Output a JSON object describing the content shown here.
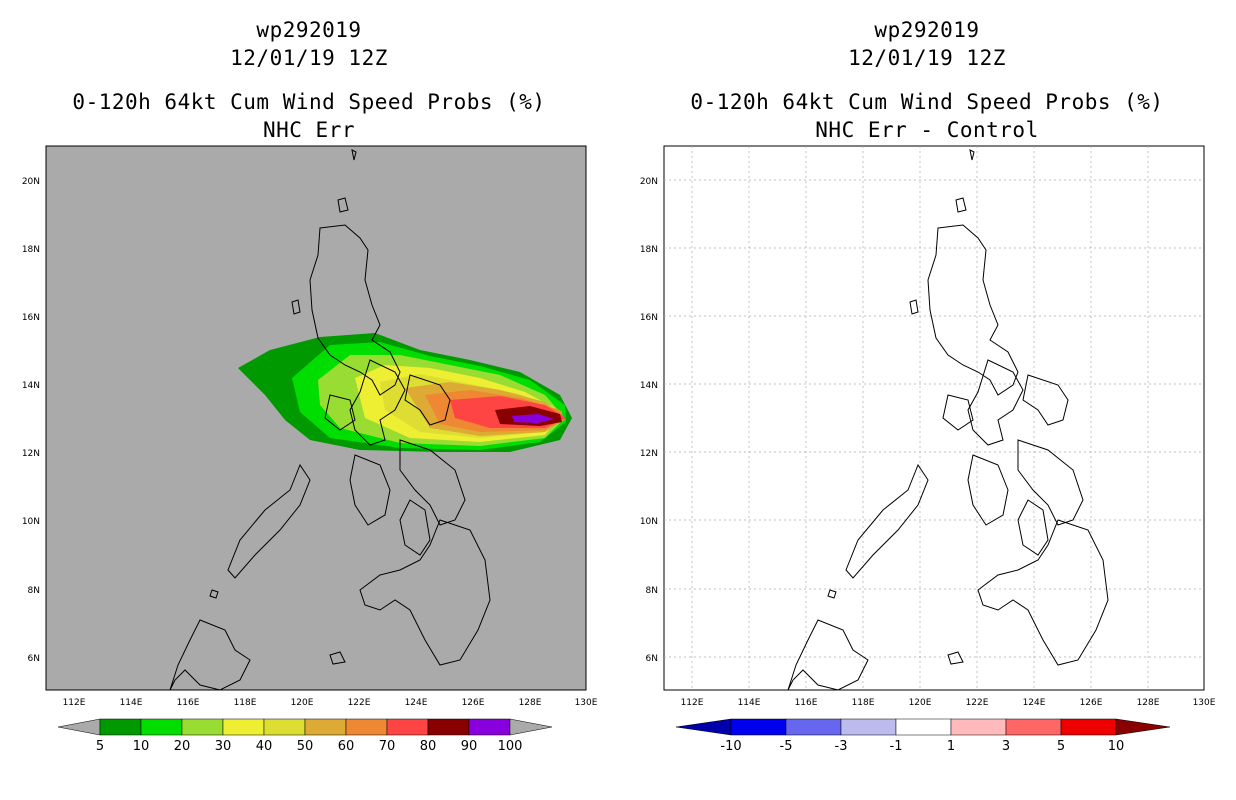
{
  "panels": [
    {
      "title_lines": [
        "wp292019",
        "12/01/19 12Z",
        "0-120h 64kt Cum Wind Speed Probs (%)",
        "NHC Err"
      ],
      "lat_labels": [
        "20N",
        "18N",
        "16N",
        "14N",
        "12N",
        "10N",
        "8N",
        "6N"
      ],
      "lon_labels": [
        "112E",
        "114E",
        "116E",
        "118E",
        "120E",
        "122E",
        "124E",
        "126E",
        "128E",
        "130E"
      ],
      "colorbar_labels": [
        "5",
        "10",
        "20",
        "30",
        "40",
        "50",
        "60",
        "70",
        "80",
        "90",
        "100"
      ],
      "colorbar_colors": [
        "#009900",
        "#00dd00",
        "#99dd33",
        "#eeee33",
        "#dddd33",
        "#ddaa33",
        "#ee8833",
        "#ff4444",
        "#880000",
        "#8800dd"
      ],
      "background_color": "#aaaaaa"
    },
    {
      "title_lines": [
        "wp292019",
        "12/01/19 12Z",
        "0-120h 64kt Cum Wind Speed Probs (%)",
        "NHC Err - Control"
      ],
      "lat_labels": [
        "20N",
        "18N",
        "16N",
        "14N",
        "12N",
        "10N",
        "8N",
        "6N"
      ],
      "lon_labels": [
        "112E",
        "114E",
        "116E",
        "118E",
        "120E",
        "122E",
        "124E",
        "126E",
        "128E",
        "130E"
      ],
      "colorbar_labels": [
        "-10",
        "-5",
        "-3",
        "-1",
        "1",
        "3",
        "5",
        "10"
      ],
      "colorbar_colors": [
        "#0000aa",
        "#0000ee",
        "#6666ee",
        "#bbbbee",
        "#ffffff",
        "#ffbbbb",
        "#ff6666",
        "#ee0000"
      ],
      "background_color": "#ffffff"
    }
  ],
  "map_extent": {
    "lon_min": 111,
    "lon_max": 130,
    "lat_min": 5,
    "lat_max": 21
  }
}
